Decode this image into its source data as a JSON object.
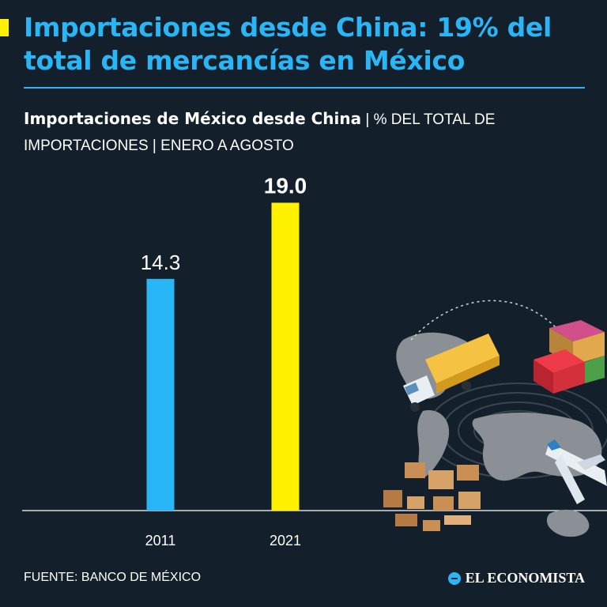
{
  "header": {
    "title": "Importaciones desde China: 19% del total de mercancías en México",
    "accent_color": "#fff200",
    "title_color": "#29b6f6"
  },
  "subtitle": {
    "bold": "Importaciones de México desde China",
    "rest": " | % DEL TOTAL DE IMPORTACIONES | ENERO A AGOSTO"
  },
  "chart_data": {
    "type": "bar",
    "categories": [
      "2011",
      "2021"
    ],
    "values": [
      14.3,
      19.0
    ],
    "value_labels": [
      "14.3",
      "19.0"
    ],
    "colors": [
      "#29b6f6",
      "#fff200"
    ],
    "ylim": [
      0,
      20
    ],
    "grid": false
  },
  "footer": {
    "source": "FUENTE: BANCO DE MÉXICO",
    "brand": "EL ECONOMISTA"
  },
  "illustration": {
    "icons": [
      "world-map-icon",
      "truck-icon",
      "shipping-containers-icon",
      "airplane-icon",
      "cardboard-boxes-icon"
    ]
  }
}
